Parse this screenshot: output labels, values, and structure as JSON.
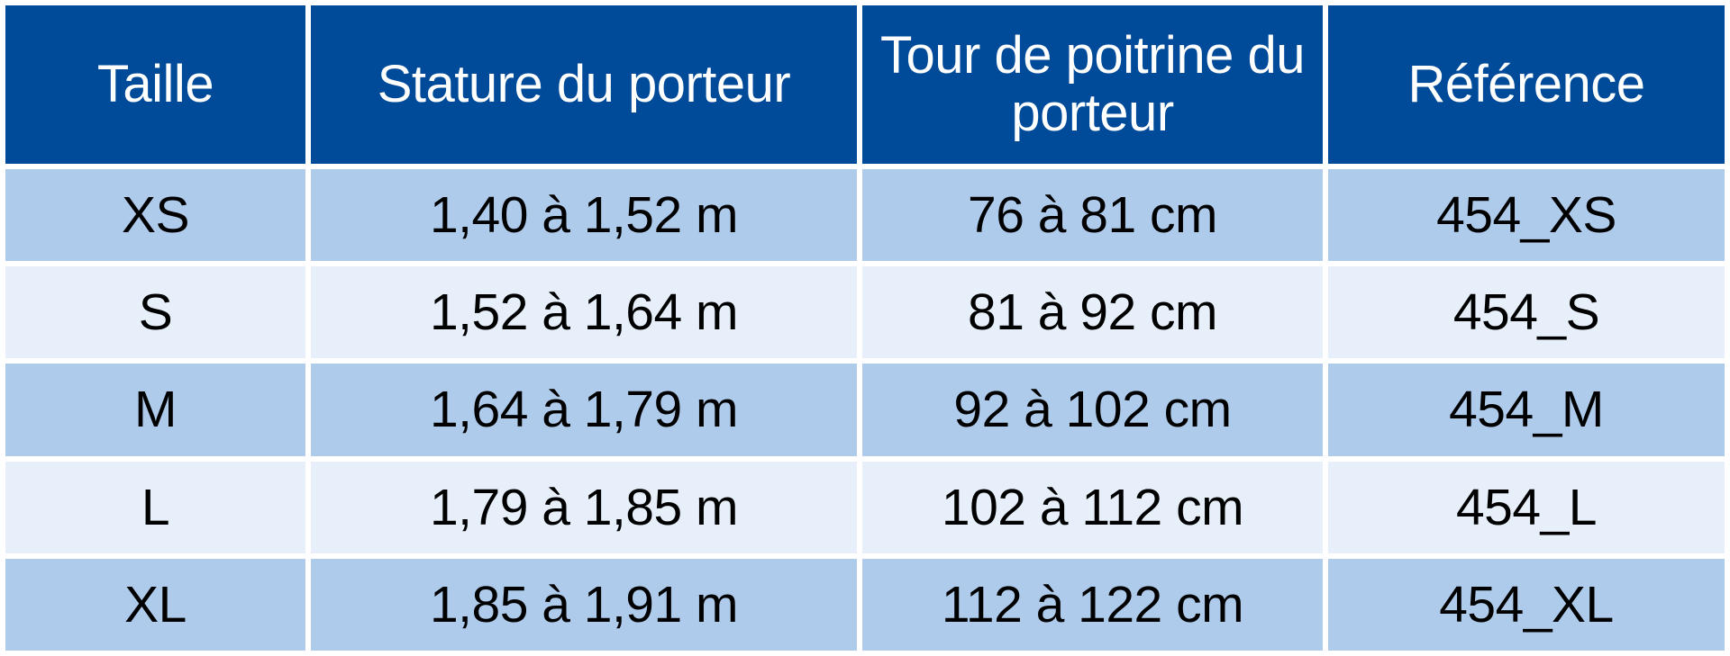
{
  "table": {
    "headers": [
      "Taille",
      "Stature du porteur",
      "Tour de poitrine du porteur",
      "Référence"
    ],
    "rows": [
      [
        "XS",
        "1,40 à 1,52 m",
        "76 à 81 cm",
        "454_XS"
      ],
      [
        "S",
        "1,52 à 1,64 m",
        "81 à 92 cm",
        "454_S"
      ],
      [
        "M",
        "1,64 à 1,79 m",
        "92 à 102 cm",
        "454_M"
      ],
      [
        "L",
        "1,79 à 1,85 m",
        "102 à 112 cm",
        "454_L"
      ],
      [
        "XL",
        "1,85 à 1,91 m",
        "112 à 122 cm",
        "454_XL"
      ]
    ]
  },
  "colors": {
    "header_background": "#004a9a",
    "header_text": "#ffffff",
    "row_dark": "#afcbeb",
    "row_light": "#e6effa",
    "cell_text": "#000000",
    "grid_lines": "#ffffff"
  }
}
